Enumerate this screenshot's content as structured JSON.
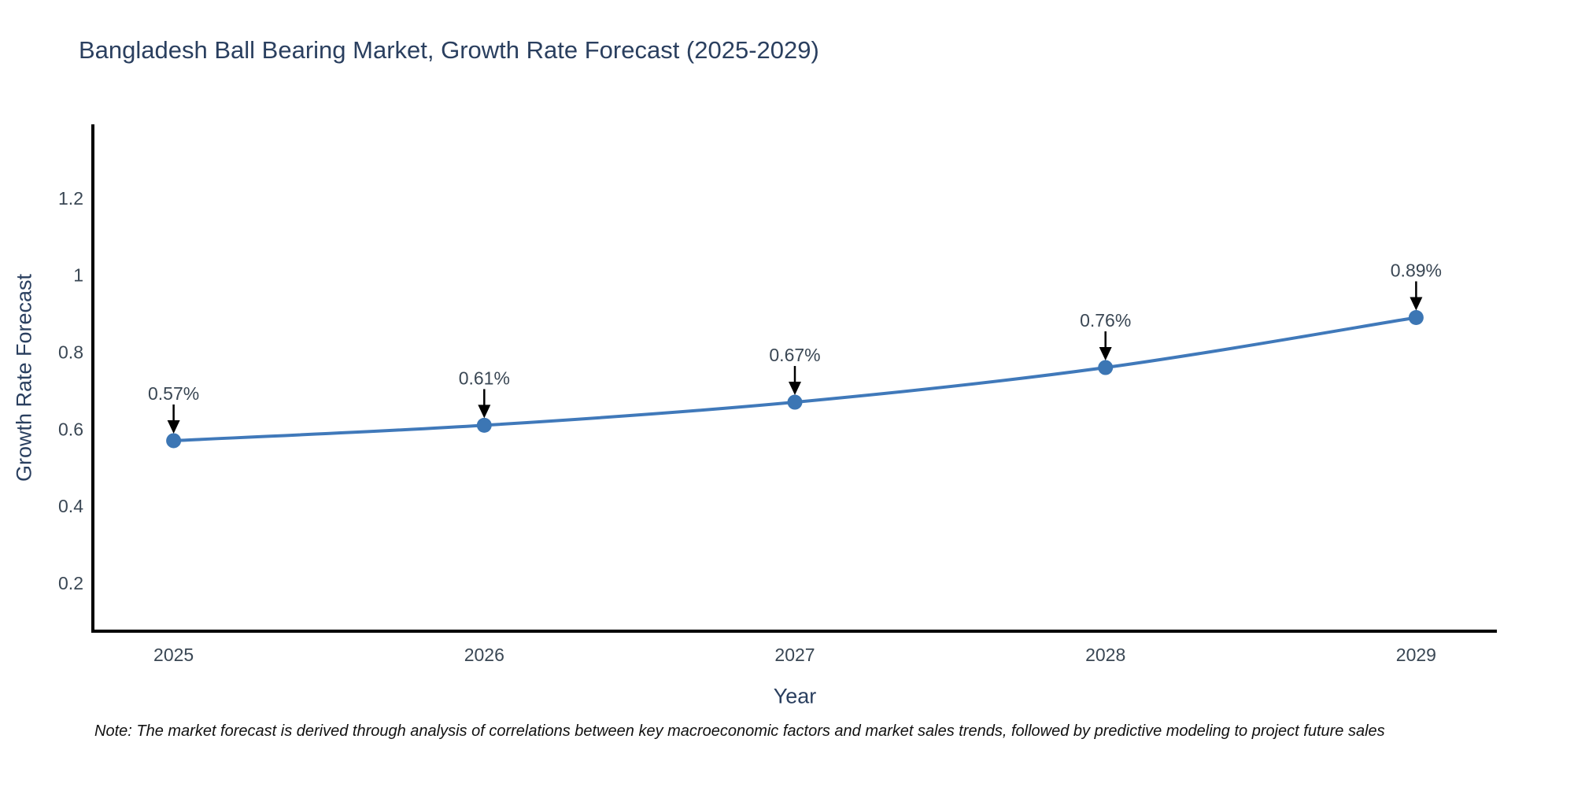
{
  "note": "Note: The market forecast is derived through analysis of correlations between key macroeconomic factors and market sales trends, followed by predictive modeling to project future sales",
  "colors": {
    "line": "#4079ba",
    "marker": "#3c76b4",
    "axis": "#000000",
    "title_text": "#2a3f5f",
    "tick_text": "#3a4754",
    "annotation_text": "#3a4754",
    "arrow": "#000000",
    "note_text": "#111111",
    "background": "#ffffff"
  },
  "chart_data": {
    "type": "line",
    "title": "Bangladesh Ball Bearing Market, Growth Rate Forecast (2025-2029)",
    "xlabel": "Year",
    "ylabel": "Growth Rate Forecast",
    "x": [
      2025,
      2026,
      2027,
      2028,
      2029
    ],
    "series": [
      {
        "name": "Growth Rate Forecast",
        "values": [
          0.57,
          0.61,
          0.67,
          0.76,
          0.89
        ]
      }
    ],
    "point_labels": [
      "0.57%",
      "0.61%",
      "0.67%",
      "0.76%",
      "0.89%"
    ],
    "xticks": [
      2025,
      2026,
      2027,
      2028,
      2029
    ],
    "xtick_labels": [
      "2025",
      "2026",
      "2027",
      "2028",
      "2029"
    ],
    "yticks": [
      0.2,
      0.4,
      0.6,
      0.8,
      1,
      1.2
    ],
    "ytick_labels": [
      "0.2",
      "0.4",
      "0.6",
      "0.8",
      "1",
      "1.2"
    ],
    "xlim": [
      2024.74,
      2029.26
    ],
    "ylim": [
      0.075,
      1.392
    ],
    "grid": false,
    "legend": "none",
    "annotation_arrows": "down-to-point"
  }
}
